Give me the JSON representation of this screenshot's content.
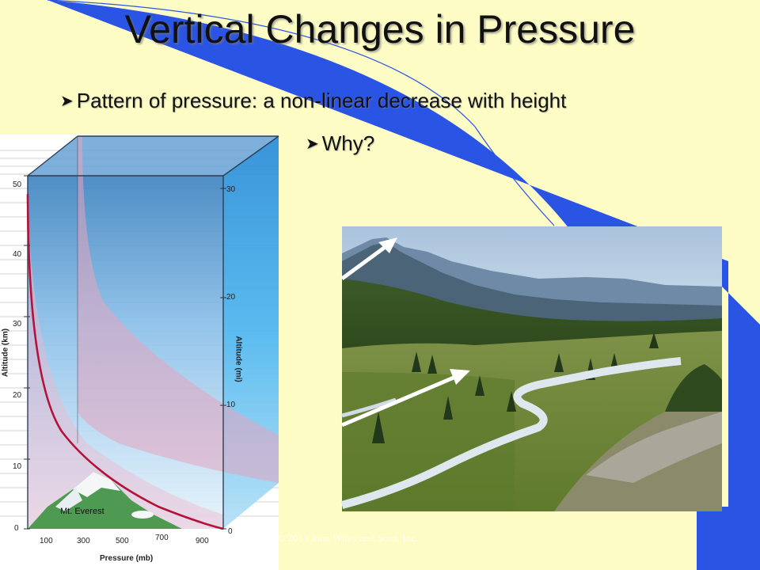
{
  "slide": {
    "title": "Vertical Changes in Pressure",
    "bullets": [
      "Pattern of pressure: a non-linear decrease with height",
      "Why?"
    ],
    "copyright": "© 2014 John Wiley and Sons, Inc."
  },
  "diagram": {
    "left_axis_label": "Altitude (km)",
    "right_axis_label": "Altitude (mi)",
    "x_axis_label": "Pressure (mb)",
    "left_ticks": [
      "0",
      "10",
      "20",
      "30",
      "40",
      "50"
    ],
    "right_ticks": [
      "0",
      "10",
      "20",
      "30"
    ],
    "x_ticks": [
      "100",
      "300",
      "500",
      "700",
      "900"
    ],
    "mountain_label": "Mt. Everest"
  },
  "colors": {
    "background": "#fdfcc4",
    "accent_blue": "#2a54e4",
    "curve": "#b5123a"
  }
}
